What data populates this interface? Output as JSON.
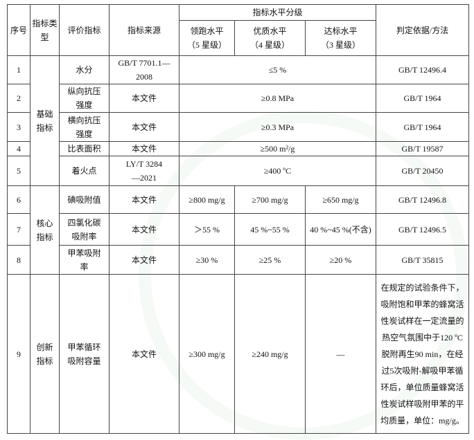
{
  "header": {
    "seq": "序号",
    "type": "指标类型",
    "indicator": "评价指标",
    "source": "指标来源",
    "levels": "指标水平分级",
    "lead": "领跑水平",
    "lead_star": "（5 星级）",
    "quality": "优质水平",
    "quality_star": "（4 星级）",
    "standard": "达标水平",
    "standard_star": "（3 星级）",
    "method": "判定依据/方法"
  },
  "groups": {
    "basic": "基础指标",
    "core": "核心指标",
    "innovation": "创新指标"
  },
  "rows": [
    {
      "no": "1",
      "indicator": "水分",
      "source": "GB/T 7701.1—2008",
      "value": "≤5 %",
      "method": "GB/T 12496.4"
    },
    {
      "no": "2",
      "indicator": "纵向抗压强度",
      "source": "本文件",
      "value": "≥0.8 MPa",
      "method": "GB/T 1964"
    },
    {
      "no": "3",
      "indicator": "横向抗压强度",
      "source": "本文件",
      "value": "≥0.3 MPa",
      "method": "GB/T 1964"
    },
    {
      "no": "4",
      "indicator": "比表面积",
      "source": "本文件",
      "value": "≥500 m²/g",
      "method": "GB/T 19587"
    },
    {
      "no": "5",
      "indicator": "着火点",
      "source": "LY/T 3284—2021",
      "value": "≥400 ºC",
      "method": "GB/T 20450"
    },
    {
      "no": "6",
      "indicator": "碘吸附值",
      "source": "本文件",
      "lead": "≥800 mg/g",
      "quality": "≥700 mg/g",
      "standard": "≥650 mg/g",
      "method": "GB/T 12496.8"
    },
    {
      "no": "7",
      "indicator": "四氯化碳吸附率",
      "source": "本文件",
      "lead": "＞55 %",
      "quality": "45 %~55 %",
      "standard": "40 %~45 %(不含)",
      "method": "GB/T 12496.5"
    },
    {
      "no": "8",
      "indicator": "甲苯吸附率",
      "source": "本文件",
      "lead": "≥30 %",
      "quality": "≥25 %",
      "standard": "≥20 %",
      "method": "GB/T 35815"
    },
    {
      "no": "9",
      "indicator": "甲苯循环吸附容量",
      "source": "本文件",
      "lead": "≥300 mg/g",
      "quality": "≥240 mg/g",
      "standard": "—",
      "method": "在规定的试验条件下，吸附饱和甲苯的蜂窝活性炭试样在一定流量的热空气氛围中于120 ºC脱附再生90 min，在经过5次吸附-解吸甲苯循环后，单位质量蜂窝活性炭试样吸附甲苯的平均质量，单位：mg/g。"
    }
  ]
}
